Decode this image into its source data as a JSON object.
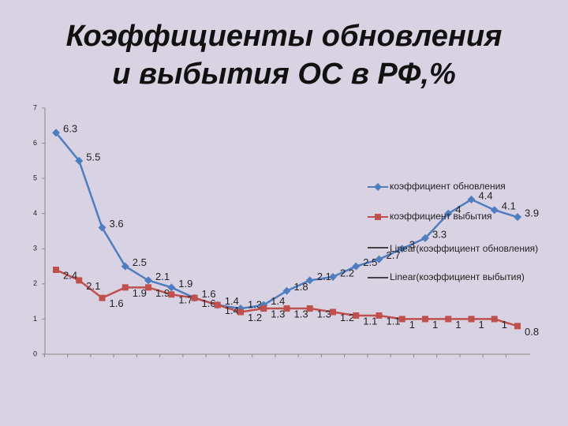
{
  "chart_data": {
    "type": "line",
    "title": [
      "Коэффициенты обновления",
      "и выбытия ОС в РФ,%"
    ],
    "categories": [
      null,
      null,
      null,
      null,
      null,
      null,
      null,
      null,
      null,
      null,
      null,
      null,
      null,
      null,
      null,
      null,
      null,
      null,
      null,
      null,
      null
    ],
    "series": [
      {
        "name": "коэффициент обновления",
        "color": "#4f7ec0",
        "marker": "diamond",
        "values": [
          6.3,
          5.5,
          3.6,
          2.5,
          2.1,
          1.9,
          1.6,
          1.4,
          1.3,
          1.4,
          1.8,
          2.1,
          2.2,
          2.5,
          2.7,
          3,
          3.3,
          4,
          4.4,
          4.1,
          3.9
        ]
      },
      {
        "name": "коэффициент выбытия",
        "color": "#c0504d",
        "marker": "square",
        "values": [
          2.4,
          2.1,
          1.6,
          1.9,
          1.9,
          1.7,
          1.6,
          1.4,
          1.2,
          1.3,
          1.3,
          1.3,
          1.2,
          1.1,
          1.1,
          1,
          1,
          1,
          1,
          1,
          0.8
        ]
      }
    ],
    "trendline_legend": [
      "Linear(коэффициент обновления)",
      "Linear(коэффициент выбытия)"
    ],
    "ylim": [
      0,
      7
    ],
    "yticks": [
      0,
      1,
      2,
      3,
      4,
      5,
      6,
      7
    ],
    "grid": false
  }
}
